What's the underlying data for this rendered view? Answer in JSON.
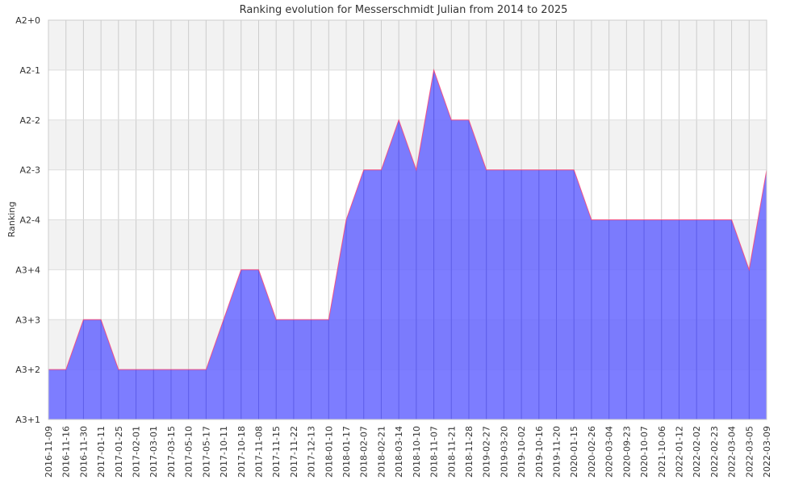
{
  "chart_data": {
    "type": "area",
    "title": "Ranking evolution for Messerschmidt Julian from 2014 to 2025",
    "xlabel": "",
    "ylabel": "Ranking",
    "y_ticks": [
      "A3+1",
      "A3+2",
      "A3+3",
      "A3+4",
      "A2-4",
      "A2-3",
      "A2-2",
      "A2-1",
      "A2+0"
    ],
    "y_tick_values": [
      0,
      1,
      2,
      3,
      4,
      5,
      6,
      7,
      8
    ],
    "ylim": [
      0,
      8
    ],
    "grid": true,
    "x": [
      "2016-11-09",
      "2016-11-16",
      "2016-11-30",
      "2017-01-11",
      "2017-01-25",
      "2017-02-01",
      "2017-03-01",
      "2017-03-15",
      "2017-05-10",
      "2017-05-17",
      "2017-10-11",
      "2017-10-18",
      "2017-11-08",
      "2017-11-15",
      "2017-11-22",
      "2017-12-13",
      "2018-01-10",
      "2018-01-17",
      "2018-02-07",
      "2018-02-21",
      "2018-03-14",
      "2018-10-10",
      "2018-11-07",
      "2018-11-21",
      "2018-11-28",
      "2019-02-27",
      "2019-03-20",
      "2019-10-02",
      "2019-10-16",
      "2019-11-20",
      "2020-01-15",
      "2020-02-26",
      "2020-03-04",
      "2020-09-23",
      "2020-10-07",
      "2021-10-06",
      "2022-01-12",
      "2022-02-02",
      "2022-02-23",
      "2022-03-04",
      "2022-03-05",
      "2022-03-09"
    ],
    "series": [
      {
        "values": [
          1,
          1,
          2,
          2,
          1,
          1,
          1,
          1,
          1,
          1,
          2,
          3,
          3,
          2,
          2,
          2,
          2,
          4,
          5,
          5,
          6,
          5,
          7,
          6,
          6,
          5,
          5,
          5,
          5,
          5,
          5,
          4,
          4,
          4,
          4,
          4,
          4,
          4,
          4,
          4,
          3,
          5
        ]
      }
    ],
    "colors": {
      "fill": "#6666ff",
      "fill_dark": "#4d4de0",
      "line": "#ff3b6b",
      "band": "#f2f2f2",
      "grid": "#cccccc"
    }
  }
}
